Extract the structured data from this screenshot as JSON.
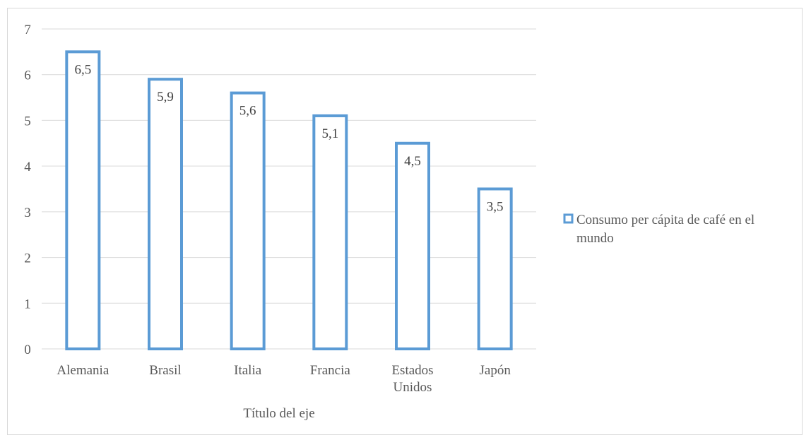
{
  "chart_data": {
    "type": "bar",
    "categories": [
      "Alemania",
      "Brasil",
      "Italia",
      "Francia",
      "Estados Unidos",
      "Japón"
    ],
    "category_lines": [
      [
        "Alemania"
      ],
      [
        "Brasil"
      ],
      [
        "Italia"
      ],
      [
        "Francia"
      ],
      [
        "Estados",
        "Unidos"
      ],
      [
        "Japón"
      ]
    ],
    "series": [
      {
        "name": "Consumo per cápita de café en el mundo",
        "name_lines": [
          "Consumo per cápita de café en el",
          "mundo"
        ],
        "values": [
          6.5,
          5.9,
          5.6,
          5.1,
          4.5,
          3.5
        ],
        "labels": [
          "6,5",
          "5,9",
          "5,6",
          "5,1",
          "4,5",
          "3,5"
        ],
        "color": "#5b9bd5",
        "fill": "#ffffff"
      }
    ],
    "title": "",
    "xlabel": "Título del eje",
    "ylabel": "",
    "ylim": [
      0,
      7
    ],
    "yticks": [
      0,
      1,
      2,
      3,
      4,
      5,
      6,
      7
    ],
    "grid": true,
    "gridline_color": "#d9d9d9",
    "legend_position": "right"
  }
}
